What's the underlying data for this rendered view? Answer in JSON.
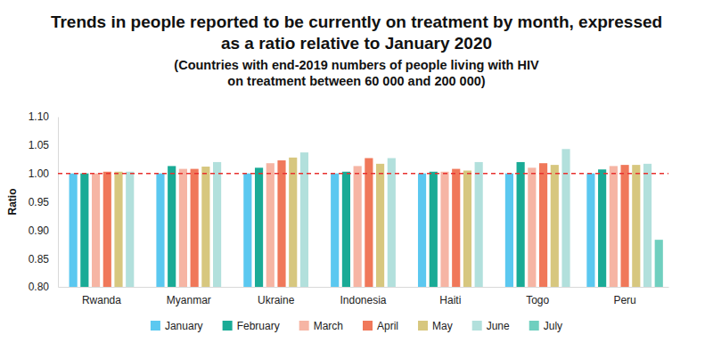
{
  "chart_data": {
    "type": "bar",
    "title": [
      "Trends in people reported to be currently on treatment by month, expressed",
      "as a ratio relative to January 2020"
    ],
    "subtitle": [
      "(Countries with end-2019 numbers of people living with HIV",
      "on treatment between 60 000 and 200 000)"
    ],
    "y_label": "Ratio",
    "categories": [
      "Rwanda",
      "Myanmar",
      "Ukraine",
      "Indonesia",
      "Haiti",
      "Togo",
      "Peru"
    ],
    "series": [
      {
        "name": "January",
        "color": "#5bc8f0",
        "values": [
          1.0,
          1.0,
          1.0,
          1.0,
          1.0,
          1.0,
          1.0
        ]
      },
      {
        "name": "February",
        "color": "#1aab96",
        "values": [
          1.0,
          1.013,
          1.01,
          1.003,
          1.003,
          1.02,
          1.007
        ]
      },
      {
        "name": "March",
        "color": "#f6b5a4",
        "values": [
          1.0,
          1.008,
          1.018,
          1.013,
          1.003,
          1.01,
          1.013
        ]
      },
      {
        "name": "April",
        "color": "#f0785a",
        "values": [
          1.003,
          1.008,
          1.023,
          1.027,
          1.008,
          1.018,
          1.015
        ]
      },
      {
        "name": "May",
        "color": "#d7c77f",
        "values": [
          1.003,
          1.012,
          1.028,
          1.017,
          1.005,
          1.015,
          1.015
        ]
      },
      {
        "name": "June",
        "color": "#b2e0dc",
        "values": [
          1.003,
          1.02,
          1.037,
          1.027,
          1.02,
          1.043,
          1.017
        ]
      },
      {
        "name": "July",
        "color": "#6fcfbf",
        "values": [
          null,
          null,
          null,
          null,
          null,
          null,
          0.883
        ]
      }
    ],
    "reference_line": 1.0,
    "ylim": [
      0.8,
      1.1
    ],
    "yticks": [
      {
        "value": 0.8,
        "label": "0.80"
      },
      {
        "value": 0.85,
        "label": "0.85"
      },
      {
        "value": 0.9,
        "label": "0.90"
      },
      {
        "value": 0.95,
        "label": "0.95"
      },
      {
        "value": 1.0,
        "label": "1.00"
      },
      {
        "value": 1.05,
        "label": "1.05"
      },
      {
        "value": 1.1,
        "label": "1.10"
      }
    ],
    "grid": false,
    "legend": "bottom"
  }
}
